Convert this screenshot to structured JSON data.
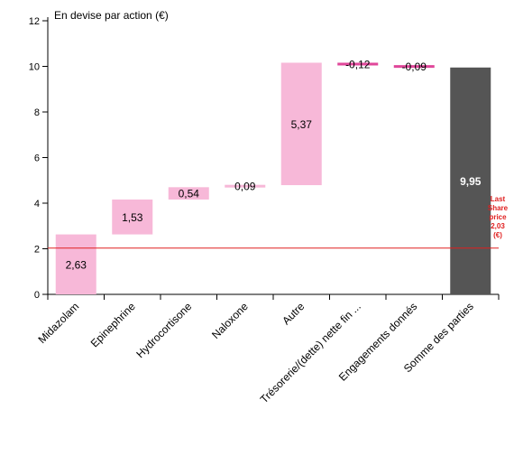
{
  "chart_data": {
    "type": "waterfall",
    "title": "En devise par action (€)",
    "categories": [
      "Midazolam",
      "Epinephrine",
      "Hydrocortisone",
      "Naloxone",
      "Autre",
      "Trésorerie/(dette) nette fin ...",
      "Engagements donnés",
      "Somme des parties"
    ],
    "steps": [
      {
        "category": "Midazolam",
        "start": 0,
        "end": 2.63,
        "label": "2,63",
        "kind": "increase"
      },
      {
        "category": "Epinephrine",
        "start": 2.63,
        "end": 4.16,
        "label": "1,53",
        "kind": "increase"
      },
      {
        "category": "Hydrocortisone",
        "start": 4.16,
        "end": 4.7,
        "label": "0,54",
        "kind": "increase"
      },
      {
        "category": "Naloxone",
        "start": 4.7,
        "end": 4.79,
        "label": "0,09",
        "kind": "increase"
      },
      {
        "category": "Autre",
        "start": 4.79,
        "end": 10.16,
        "label": "5,37",
        "kind": "increase"
      },
      {
        "category": "Trésorerie/(dette) nette fin ...",
        "start": 10.16,
        "end": 10.04,
        "label": "-0,12",
        "kind": "decrease"
      },
      {
        "category": "Engagements donnés",
        "start": 10.04,
        "end": 9.95,
        "label": "-0,09",
        "kind": "decrease"
      },
      {
        "category": "Somme des parties",
        "start": 0,
        "end": 9.95,
        "label": "9,95",
        "kind": "total"
      }
    ],
    "yticks": [
      0,
      2,
      4,
      6,
      8,
      10,
      12
    ],
    "ylim": [
      0,
      12
    ],
    "reference_line": {
      "value": 2.03,
      "label_lines": [
        "Last",
        "Share",
        "price",
        "2,03",
        "(€)"
      ],
      "color": "#e02020"
    },
    "colors": {
      "increase": "#f7b8d8",
      "decrease": "#e0479a",
      "total": "#555555"
    },
    "grid": false,
    "xlabel": "",
    "ylabel": ""
  }
}
